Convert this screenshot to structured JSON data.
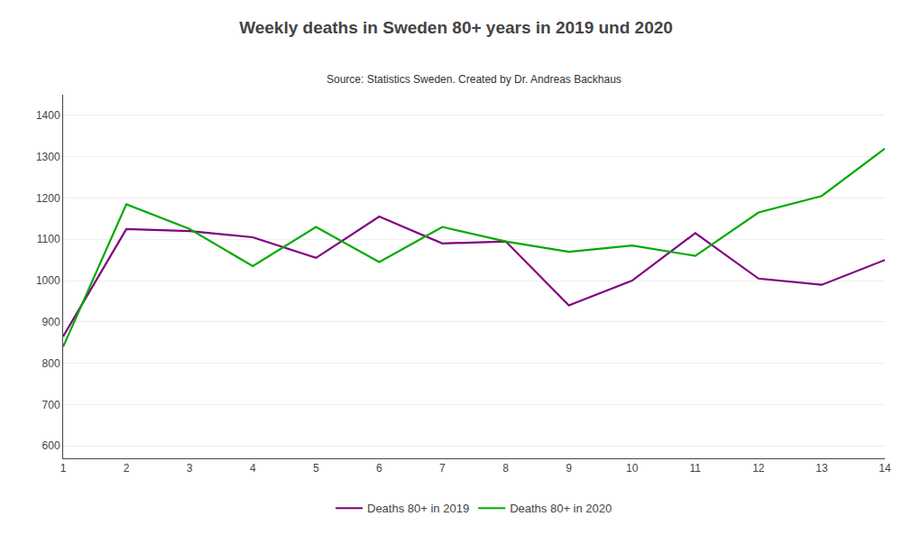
{
  "chart_data": {
    "type": "line",
    "title": "Weekly deaths in Sweden 80+ years in 2019 und 2020",
    "subtitle": "Source: Statistics Sweden. Created by Dr. Andreas Backhaus",
    "x": [
      1,
      2,
      3,
      4,
      5,
      6,
      7,
      8,
      9,
      10,
      11,
      12,
      13,
      14
    ],
    "series": [
      {
        "name": "Deaths 80+ in 2019",
        "color": "#800080",
        "values": [
          865,
          1125,
          1120,
          1105,
          1055,
          1155,
          1090,
          1095,
          940,
          1000,
          1115,
          1005,
          990,
          1050
        ]
      },
      {
        "name": "Deaths 80+ in 2020",
        "color": "#00aa00",
        "values": [
          840,
          1185,
          1125,
          1035,
          1130,
          1045,
          1130,
          1095,
          1070,
          1085,
          1060,
          1165,
          1205,
          1320
        ]
      }
    ],
    "xlim": [
      1,
      14
    ],
    "xticks": [
      1,
      2,
      3,
      4,
      5,
      6,
      7,
      8,
      9,
      10,
      11,
      12,
      13,
      14
    ],
    "ylim": [
      570,
      1450
    ],
    "yticks": [
      600,
      700,
      800,
      900,
      1000,
      1100,
      1200,
      1300,
      1400
    ],
    "grid": "y",
    "legend": "bottom"
  }
}
